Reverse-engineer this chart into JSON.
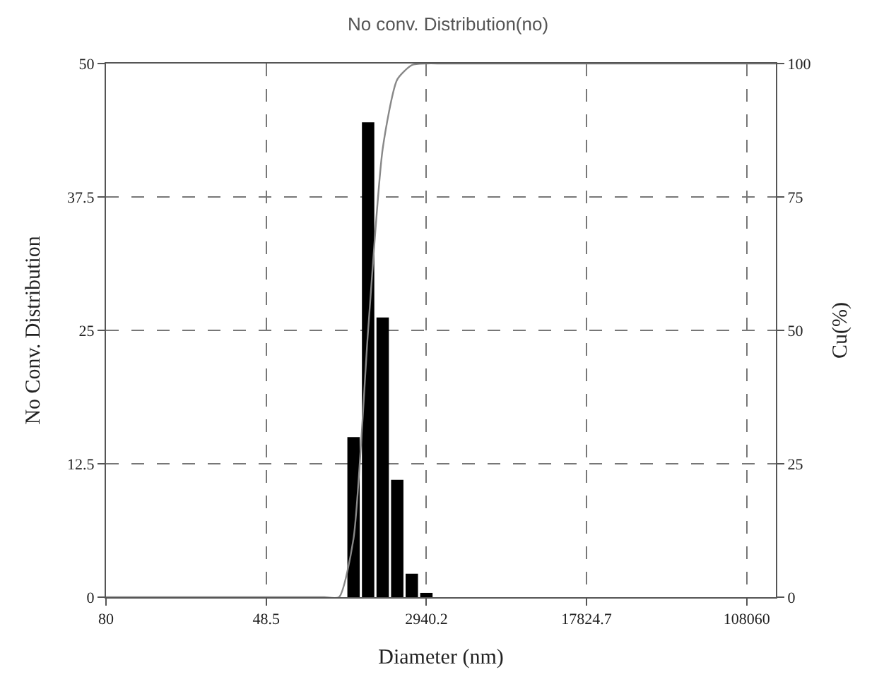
{
  "chart_data": {
    "type": "bar",
    "title": "No conv. Distribution(no)",
    "xlabel": "Diameter (nm)",
    "ylabel": "No Conv. Distribution",
    "y2label": "Cu(%)",
    "categories": [
      "80",
      null,
      null,
      null,
      null,
      null,
      null,
      null,
      null,
      null,
      null,
      "48.5",
      null,
      null,
      null,
      null,
      null,
      null,
      null,
      null,
      null,
      null,
      "2940.2",
      null,
      null,
      null,
      null,
      null,
      null,
      null,
      null,
      null,
      null,
      "17824.7",
      null,
      null,
      null,
      null,
      null,
      null,
      null,
      null,
      null,
      null,
      "108060",
      null,
      null
    ],
    "series": [
      {
        "color": "#000000",
        "values": [
          null,
          null,
          null,
          null,
          null,
          null,
          null,
          null,
          null,
          null,
          null,
          null,
          null,
          null,
          null,
          null,
          null,
          15.0,
          44.5,
          26.2,
          11.0,
          2.2,
          0.4,
          null,
          null,
          null,
          null,
          null,
          null,
          null,
          null,
          null,
          null,
          null,
          null,
          null,
          null,
          null,
          null,
          null,
          null,
          null,
          null,
          null,
          null,
          null,
          null
        ]
      },
      {
        "type": "line",
        "axis": "y2",
        "color": "#888888",
        "values": [
          0,
          0,
          0,
          0,
          0,
          0,
          0,
          0,
          0,
          0,
          0,
          0,
          0,
          0,
          0,
          0,
          0,
          11,
          50,
          84,
          97,
          99.7,
          100,
          100,
          100,
          100,
          100,
          100,
          100,
          100,
          100,
          100,
          100,
          100,
          100,
          100,
          100,
          100,
          100,
          100,
          100,
          100,
          100,
          100,
          100,
          100,
          100
        ]
      }
    ],
    "ylim": [
      0,
      50
    ],
    "yticks": [
      0,
      12.5,
      25,
      37.5,
      50
    ],
    "y2lim": [
      0,
      100
    ],
    "y2ticks": [
      0,
      25,
      50,
      75,
      100
    ],
    "grid": true,
    "line_style": "solid",
    "marker": "none"
  }
}
